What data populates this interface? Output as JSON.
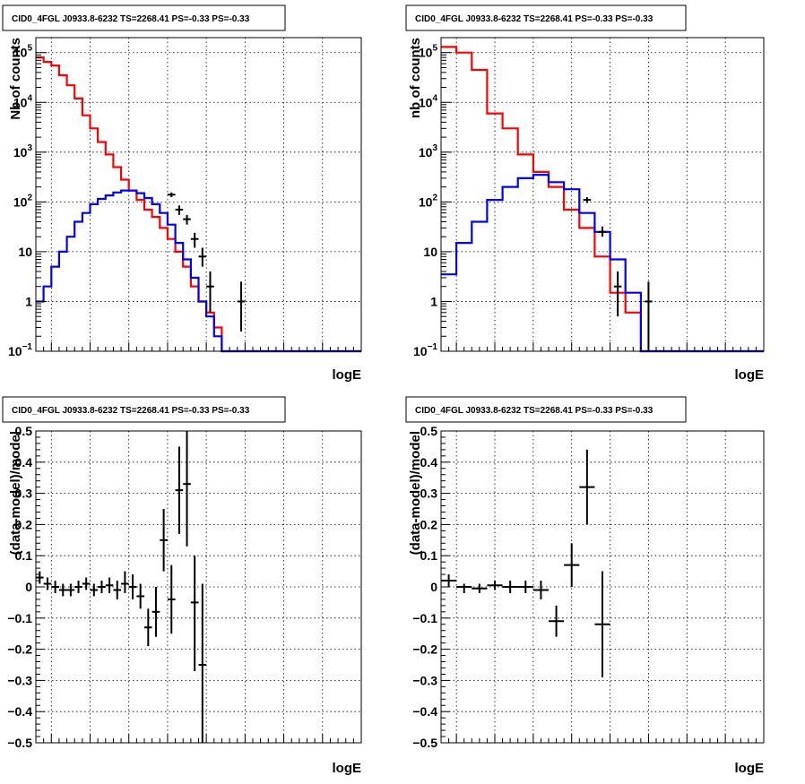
{
  "chart_data": [
    {
      "id": "counts_fine",
      "type": "line",
      "title": "CID0_4FGL J0933.8-6232 TS=2268.41 PS=-0.33 PS=-0.33",
      "xlabel": "logE",
      "ylabel": "Nb of counts",
      "xlim": [
        1.8,
        6
      ],
      "ylim": [
        0.1,
        200000
      ],
      "yscale": "log",
      "grid": true,
      "x_ticks": [
        "2",
        "2.5",
        "3",
        "3.5",
        "4",
        "4.5",
        "5",
        "5.5",
        "6"
      ],
      "y_ticks": [
        {
          "v": 0.1,
          "base": "10",
          "exp": "−1"
        },
        {
          "v": 1,
          "text": "1"
        },
        {
          "v": 10,
          "text": "10"
        },
        {
          "v": 100,
          "base": "10",
          "exp": "2"
        },
        {
          "v": 1000,
          "base": "10",
          "exp": "3"
        },
        {
          "v": 10000,
          "base": "10",
          "exp": "4"
        },
        {
          "v": 100000,
          "base": "10",
          "exp": "5"
        }
      ],
      "bin_edges": [
        1.8,
        1.9,
        2.0,
        2.1,
        2.2,
        2.3,
        2.4,
        2.5,
        2.6,
        2.7,
        2.8,
        2.9,
        3.0,
        3.1,
        3.2,
        3.3,
        3.4,
        3.5,
        3.6,
        3.7,
        3.8,
        3.9,
        4.0,
        4.1,
        4.2,
        4.3,
        4.4,
        4.5,
        4.6,
        4.7,
        4.8,
        4.9,
        5.0,
        5.1,
        5.2,
        5.3,
        5.4,
        5.5,
        5.6,
        5.7,
        5.8,
        5.9,
        6.0
      ],
      "series": [
        {
          "color": "#ff0000",
          "kind": "step",
          "values": [
            80000,
            65000,
            55000,
            35000,
            22000,
            12000,
            5500,
            3000,
            1600,
            900,
            500,
            280,
            170,
            110,
            70,
            50,
            30,
            18,
            10,
            5,
            2,
            1,
            0.6,
            0.3,
            0,
            0,
            0,
            0,
            0,
            0,
            0,
            0,
            0,
            0,
            0,
            0,
            0,
            0,
            0,
            0,
            0,
            0
          ]
        },
        {
          "color": "#0000ff",
          "kind": "step",
          "values": [
            1,
            2,
            5,
            10,
            20,
            40,
            60,
            90,
            115,
            135,
            155,
            170,
            170,
            150,
            120,
            90,
            60,
            35,
            15,
            7,
            3,
            1,
            0.5,
            0.2,
            0,
            0,
            0,
            0,
            0,
            0,
            0,
            0,
            0,
            0,
            0,
            0,
            0,
            0,
            0,
            0,
            0,
            0
          ]
        },
        {
          "color": "#000000",
          "kind": "errorbar",
          "points": [
            {
              "x": 3.55,
              "y": 140,
              "lo": 125,
              "hi": 155
            },
            {
              "x": 3.65,
              "y": 70,
              "lo": 55,
              "hi": 85
            },
            {
              "x": 3.75,
              "y": 45,
              "lo": 35,
              "hi": 55
            },
            {
              "x": 3.85,
              "y": 18,
              "lo": 12,
              "hi": 24
            },
            {
              "x": 3.95,
              "y": 8,
              "lo": 5,
              "hi": 12
            },
            {
              "x": 4.05,
              "y": 2,
              "lo": 0.6,
              "hi": 4
            },
            {
              "x": 4.45,
              "y": 1,
              "lo": 0.25,
              "hi": 2.5
            }
          ]
        }
      ]
    },
    {
      "id": "counts_coarse",
      "type": "line",
      "title": "CID0_4FGL J0933.8-6232 TS=2268.41 PS=-0.33 PS=-0.33",
      "xlabel": "logE",
      "ylabel": "nb of counts",
      "xlim": [
        1.8,
        6
      ],
      "ylim": [
        0.1,
        200000
      ],
      "yscale": "log",
      "grid": true,
      "x_ticks": [
        "2",
        "2.5",
        "3",
        "3.5",
        "4",
        "4.5",
        "5",
        "5.5",
        "6"
      ],
      "y_ticks": [
        {
          "v": 0.1,
          "base": "10",
          "exp": "−1"
        },
        {
          "v": 1,
          "text": "1"
        },
        {
          "v": 10,
          "text": "10"
        },
        {
          "v": 100,
          "base": "10",
          "exp": "2"
        },
        {
          "v": 1000,
          "base": "10",
          "exp": "3"
        },
        {
          "v": 10000,
          "base": "10",
          "exp": "4"
        },
        {
          "v": 100000,
          "base": "10",
          "exp": "5"
        }
      ],
      "bin_edges": [
        1.8,
        2.0,
        2.2,
        2.4,
        2.6,
        2.8,
        3.0,
        3.2,
        3.4,
        3.6,
        3.8,
        4.0,
        4.2,
        4.4,
        4.6,
        4.8,
        5.0,
        5.2,
        5.4,
        5.6,
        5.8,
        6.0
      ],
      "series": [
        {
          "color": "#ff0000",
          "kind": "step",
          "values": [
            130000,
            100000,
            45000,
            6000,
            3000,
            900,
            400,
            200,
            70,
            30,
            8,
            1.5,
            0.6,
            0,
            0,
            0,
            0,
            0,
            0,
            0,
            0
          ]
        },
        {
          "color": "#0000ff",
          "kind": "step",
          "values": [
            3.5,
            15,
            40,
            110,
            200,
            300,
            350,
            250,
            180,
            60,
            25,
            7,
            1.5,
            0,
            0,
            0,
            0,
            0,
            0,
            0,
            0
          ]
        },
        {
          "color": "#000000",
          "kind": "errorbar",
          "points": [
            {
              "x": 3.7,
              "y": 110,
              "lo": 95,
              "hi": 125
            },
            {
              "x": 3.9,
              "y": 25,
              "lo": 20,
              "hi": 32
            },
            {
              "x": 4.1,
              "y": 2,
              "lo": 0.5,
              "hi": 4
            },
            {
              "x": 4.5,
              "y": 1,
              "lo": 0.1,
              "hi": 2.5
            }
          ]
        }
      ]
    },
    {
      "id": "residual_fine",
      "type": "scatter",
      "title": "CID0_4FGL J0933.8-6232 TS=2268.41 PS=-0.33 PS=-0.33",
      "xlabel": "logE",
      "ylabel": "(data-model)/model",
      "xlim": [
        1.8,
        6
      ],
      "ylim": [
        -0.5,
        0.5
      ],
      "yscale": "linear",
      "grid": true,
      "x_ticks": [
        "2",
        "2.5",
        "3",
        "3.5",
        "4",
        "4.5",
        "5",
        "5.5",
        "6"
      ],
      "y_ticks": [
        {
          "v": -0.5,
          "text": "−0.5"
        },
        {
          "v": -0.4,
          "text": "−0.4"
        },
        {
          "v": -0.3,
          "text": "−0.3"
        },
        {
          "v": -0.2,
          "text": "−0.2"
        },
        {
          "v": -0.1,
          "text": "−0.1"
        },
        {
          "v": 0,
          "text": "0"
        },
        {
          "v": 0.1,
          "text": "0.1"
        },
        {
          "v": 0.2,
          "text": "0.2"
        },
        {
          "v": 0.3,
          "text": "0.3"
        },
        {
          "v": 0.4,
          "text": "0.4"
        },
        {
          "v": 0.5,
          "text": "0.5"
        }
      ],
      "series": [
        {
          "color": "#000000",
          "kind": "errorbar",
          "xerr": 0.05,
          "points": [
            {
              "x": 1.85,
              "y": 0.03,
              "lo": 0.01,
              "hi": 0.05
            },
            {
              "x": 1.95,
              "y": 0.01,
              "lo": -0.01,
              "hi": 0.03
            },
            {
              "x": 2.05,
              "y": 0.0,
              "lo": -0.02,
              "hi": 0.02
            },
            {
              "x": 2.15,
              "y": -0.01,
              "lo": -0.03,
              "hi": 0.01
            },
            {
              "x": 2.25,
              "y": -0.01,
              "lo": -0.03,
              "hi": 0.01
            },
            {
              "x": 2.35,
              "y": 0.0,
              "lo": -0.02,
              "hi": 0.02
            },
            {
              "x": 2.45,
              "y": 0.01,
              "lo": -0.01,
              "hi": 0.03
            },
            {
              "x": 2.55,
              "y": -0.01,
              "lo": -0.03,
              "hi": 0.01
            },
            {
              "x": 2.65,
              "y": 0.0,
              "lo": -0.02,
              "hi": 0.02
            },
            {
              "x": 2.75,
              "y": 0.005,
              "lo": -0.02,
              "hi": 0.03
            },
            {
              "x": 2.85,
              "y": -0.01,
              "lo": -0.04,
              "hi": 0.02
            },
            {
              "x": 2.95,
              "y": 0.01,
              "lo": -0.02,
              "hi": 0.05
            },
            {
              "x": 3.05,
              "y": 0.0,
              "lo": -0.04,
              "hi": 0.04
            },
            {
              "x": 3.15,
              "y": -0.03,
              "lo": -0.07,
              "hi": 0.01
            },
            {
              "x": 3.25,
              "y": -0.13,
              "lo": -0.19,
              "hi": -0.07
            },
            {
              "x": 3.35,
              "y": -0.08,
              "lo": -0.16,
              "hi": -0.0
            },
            {
              "x": 3.45,
              "y": 0.15,
              "lo": 0.05,
              "hi": 0.25
            },
            {
              "x": 3.55,
              "y": -0.04,
              "lo": -0.15,
              "hi": 0.07
            },
            {
              "x": 3.65,
              "y": 0.31,
              "lo": 0.17,
              "hi": 0.45
            },
            {
              "x": 3.75,
              "y": 0.33,
              "lo": 0.13,
              "hi": 0.5
            },
            {
              "x": 3.85,
              "y": -0.05,
              "lo": -0.27,
              "hi": 0.1
            },
            {
              "x": 3.95,
              "y": -0.25,
              "lo": -0.5,
              "hi": 0.01
            }
          ]
        }
      ]
    },
    {
      "id": "residual_coarse",
      "type": "scatter",
      "title": "CID0_4FGL J0933.8-6232 TS=2268.41 PS=-0.33 PS=-0.33",
      "xlabel": "logE",
      "ylabel": "(data-model)/model",
      "xlim": [
        1.8,
        6
      ],
      "ylim": [
        -0.5,
        0.5
      ],
      "yscale": "linear",
      "grid": true,
      "x_ticks": [
        "2",
        "2.5",
        "3",
        "3.5",
        "4",
        "4.5",
        "5",
        "5.5",
        "6"
      ],
      "y_ticks": [
        {
          "v": -0.5,
          "text": "−0.5"
        },
        {
          "v": -0.4,
          "text": "−0.4"
        },
        {
          "v": -0.3,
          "text": "−0.3"
        },
        {
          "v": -0.2,
          "text": "−0.2"
        },
        {
          "v": -0.1,
          "text": "−0.1"
        },
        {
          "v": 0,
          "text": "0"
        },
        {
          "v": 0.1,
          "text": "0.1"
        },
        {
          "v": 0.2,
          "text": "0.2"
        },
        {
          "v": 0.3,
          "text": "0.3"
        },
        {
          "v": 0.4,
          "text": "0.4"
        },
        {
          "v": 0.5,
          "text": "0.5"
        }
      ],
      "series": [
        {
          "color": "#000000",
          "kind": "errorbar",
          "xerr": 0.1,
          "points": [
            {
              "x": 1.9,
              "y": 0.02,
              "lo": 0.0,
              "hi": 0.04
            },
            {
              "x": 2.1,
              "y": 0.0,
              "lo": -0.02,
              "hi": 0.01
            },
            {
              "x": 2.3,
              "y": -0.005,
              "lo": -0.02,
              "hi": 0.01
            },
            {
              "x": 2.5,
              "y": 0.005,
              "lo": -0.01,
              "hi": 0.02
            },
            {
              "x": 2.7,
              "y": 0.0,
              "lo": -0.02,
              "hi": 0.02
            },
            {
              "x": 2.9,
              "y": 0.0,
              "lo": -0.02,
              "hi": 0.02
            },
            {
              "x": 3.1,
              "y": -0.01,
              "lo": -0.04,
              "hi": 0.02
            },
            {
              "x": 3.3,
              "y": -0.11,
              "lo": -0.16,
              "hi": -0.06
            },
            {
              "x": 3.5,
              "y": 0.07,
              "lo": 0.0,
              "hi": 0.14
            },
            {
              "x": 3.7,
              "y": 0.32,
              "lo": 0.2,
              "hi": 0.44
            },
            {
              "x": 3.9,
              "y": -0.12,
              "lo": -0.29,
              "hi": 0.05
            }
          ]
        }
      ]
    }
  ]
}
